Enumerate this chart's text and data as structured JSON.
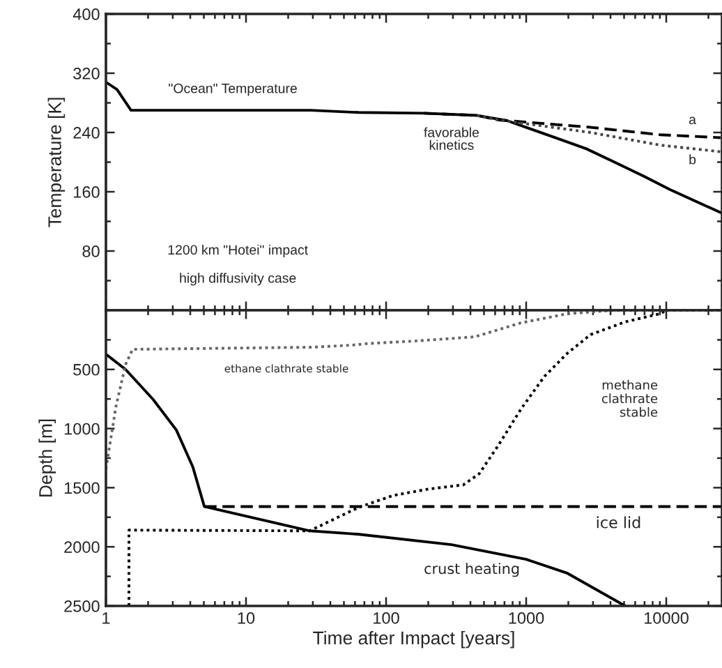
{
  "chart_data": [
    {
      "type": "line",
      "ylabel": "Temperature [K]",
      "xlim": [
        1,
        25000
      ],
      "xticks": [
        1,
        10,
        100,
        1000,
        10000
      ],
      "ylim": [
        0,
        400
      ],
      "yticks": [
        80,
        160,
        240,
        320,
        400
      ],
      "log": "x",
      "tick_labels": "y",
      "series": [
        {
          "color": "#000000",
          "line_style": "solid",
          "x": [
            1,
            1.2,
            1.51,
            29,
            64,
            186,
            447,
            730,
            1510,
            2690,
            4270,
            6920,
            10600,
            24400
          ],
          "values": [
            308,
            298,
            270,
            270,
            267,
            266,
            263,
            256,
            235,
            218,
            200,
            181,
            163,
            132
          ]
        },
        {
          "color": "#000000",
          "line_style": "dashed",
          "x": [
            186,
            447,
            630,
            2880,
            9020,
            24400
          ],
          "values": [
            266,
            263,
            257,
            247,
            237,
            233
          ]
        },
        {
          "color": "#444444",
          "line_style": "dotted",
          "x": [
            447,
            630,
            2880,
            9020,
            24400
          ],
          "values": [
            263,
            257,
            240,
            223,
            214
          ]
        }
      ],
      "annotations": [
        "\"Ocean\" Temperature",
        "favorable\nkinetics",
        "a",
        "b",
        "1200 km \"Hotei\" impact",
        "high diffusivity case"
      ]
    },
    {
      "type": "line",
      "xlabel": "Time after Impact [years]",
      "ylabel": "Depth [m]",
      "xlim": [
        1,
        25000
      ],
      "xticks": [
        1,
        10,
        100,
        1000,
        10000
      ],
      "ylim": [
        2500,
        0
      ],
      "yticks": [
        500,
        1000,
        1500,
        2000,
        2500
      ],
      "log": "x",
      "series": [
        {
          "color": "#000000",
          "line_style": "solid",
          "x": [
            1,
            1.38,
            2.17,
            3.18,
            4.17,
            5.04,
            28.5,
            64,
            293,
            1000,
            1973,
            5090
          ],
          "values": [
            371,
            500,
            753,
            1012,
            1324,
            1659,
            1865,
            1894,
            1982,
            2106,
            2224,
            2500
          ]
        },
        {
          "color": "#000000",
          "line_style": "dashed",
          "x": [
            5.04,
            25000
          ],
          "values": [
            1660,
            1660
          ]
        },
        {
          "color": "#000000",
          "line_style": "dotted",
          "x": [
            1.46,
            1.46,
            28.5,
            64,
            113,
            200,
            356,
            462,
            629,
            918,
            1350,
            1970,
            2880,
            5090,
            9020,
            10000
          ],
          "values": [
            2500,
            1859,
            1865,
            1665,
            1565,
            1512,
            1476,
            1382,
            1147,
            835,
            559,
            363,
            206,
            98,
            29,
            0
          ]
        },
        {
          "color": "#666666",
          "line_style": "dotted",
          "x": [
            1,
            1.18,
            1.38,
            1.55,
            30,
            58,
            72,
            166,
            431,
            918,
            1970,
            4220,
            25000
          ],
          "values": [
            1341,
            812,
            460,
            330,
            312,
            294,
            282,
            259,
            224,
            106,
            29,
            0,
            0
          ]
        }
      ],
      "annotations": [
        "ethane clathrate stable",
        "methane\nclathrate\nstable",
        "ice lid",
        "crust heating"
      ]
    }
  ]
}
